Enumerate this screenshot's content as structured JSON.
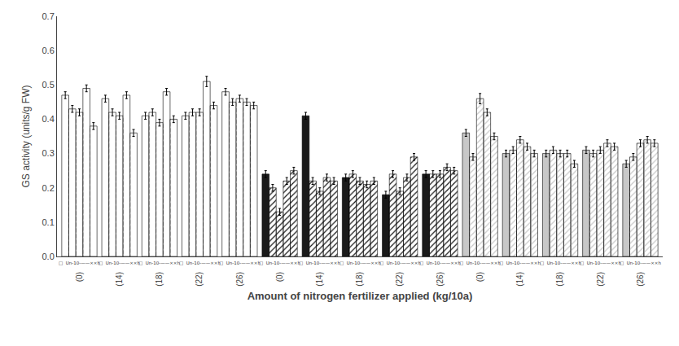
{
  "chart_data": {
    "type": "bar",
    "xlabel": "Amount of nitrogen fertilizer applied (kg/10a)",
    "ylabel": "GS activity (units/g FW)",
    "categories": [
      "(0)",
      "(14)",
      "(18)",
      "(22)",
      "(26)",
      "(0)",
      "(14)",
      "(18)",
      "(22)",
      "(26)",
      "(0)",
      "(14)",
      "(18)",
      "(22)",
      "(26)"
    ],
    "series": [
      {
        "values": [
          0.47,
          0.46,
          0.41,
          0.41,
          0.48,
          0.24,
          0.41,
          0.23,
          0.18,
          0.24,
          0.36,
          0.3,
          0.3,
          0.31,
          0.27
        ],
        "errors": [
          0.01,
          0.01,
          0.01,
          0.01,
          0.01,
          0.01,
          0.01,
          0.01,
          0.01,
          0.01,
          0.01,
          0.01,
          0.01,
          0.01,
          0.01
        ],
        "colors": [
          "white",
          "white",
          "white",
          "white",
          "white",
          "#1a1a1a",
          "#1a1a1a",
          "#1a1a1a",
          "#1a1a1a",
          "#1a1a1a",
          "#c8c8c8",
          "#c8c8c8",
          "#c8c8c8",
          "#c8c8c8",
          "#c8c8c8"
        ]
      },
      {
        "values": [
          0.43,
          0.42,
          0.42,
          0.42,
          0.45,
          0.2,
          0.22,
          0.24,
          0.24,
          0.24,
          0.29,
          0.31,
          0.31,
          0.3,
          0.29
        ],
        "errors": [
          0.01,
          0.01,
          0.01,
          0.01,
          0.01,
          0.01,
          0.01,
          0.01,
          0.01,
          0.01,
          0.01,
          0.01,
          0.01,
          0.01,
          0.01
        ],
        "colors": [
          "white",
          "white",
          "white",
          "white",
          "white",
          "#1a1a1a",
          "#1a1a1a",
          "#1a1a1a",
          "#1a1a1a",
          "#1a1a1a",
          "#c8c8c8",
          "#c8c8c8",
          "#c8c8c8",
          "#c8c8c8",
          "#c8c8c8"
        ]
      },
      {
        "values": [
          0.42,
          0.41,
          0.39,
          0.42,
          0.46,
          0.13,
          0.19,
          0.22,
          0.19,
          0.24,
          0.46,
          0.34,
          0.3,
          0.31,
          0.33
        ],
        "errors": [
          0.01,
          0.01,
          0.01,
          0.01,
          0.01,
          0.01,
          0.01,
          0.01,
          0.01,
          0.01,
          0.015,
          0.01,
          0.01,
          0.01,
          0.01
        ],
        "colors": [
          "white",
          "white",
          "white",
          "white",
          "white",
          "#1a1a1a",
          "#1a1a1a",
          "#1a1a1a",
          "#1a1a1a",
          "#1a1a1a",
          "#c8c8c8",
          "#c8c8c8",
          "#c8c8c8",
          "#c8c8c8",
          "#c8c8c8"
        ]
      },
      {
        "values": [
          0.49,
          0.47,
          0.48,
          0.51,
          0.45,
          0.22,
          0.23,
          0.21,
          0.23,
          0.26,
          0.42,
          0.32,
          0.3,
          0.33,
          0.34
        ],
        "errors": [
          0.01,
          0.01,
          0.01,
          0.015,
          0.01,
          0.01,
          0.01,
          0.01,
          0.01,
          0.01,
          0.01,
          0.01,
          0.01,
          0.01,
          0.01
        ],
        "colors": [
          "white",
          "white",
          "white",
          "white",
          "white",
          "#1a1a1a",
          "#1a1a1a",
          "#1a1a1a",
          "#1a1a1a",
          "#1a1a1a",
          "#c8c8c8",
          "#c8c8c8",
          "#c8c8c8",
          "#c8c8c8",
          "#c8c8c8"
        ]
      },
      {
        "values": [
          0.38,
          0.36,
          0.4,
          0.44,
          0.44,
          0.25,
          0.22,
          0.22,
          0.29,
          0.25,
          0.35,
          0.3,
          0.27,
          0.32,
          0.33
        ],
        "errors": [
          0.01,
          0.01,
          0.01,
          0.01,
          0.01,
          0.01,
          0.01,
          0.01,
          0.01,
          0.01,
          0.01,
          0.01,
          0.01,
          0.01,
          0.01
        ],
        "colors": [
          "white",
          "white",
          "white",
          "white",
          "white",
          "#1a1a1a",
          "#1a1a1a",
          "#1a1a1a",
          "#1a1a1a",
          "#1a1a1a",
          "#c8c8c8",
          "#c8c8c8",
          "#c8c8c8",
          "#c8c8c8",
          "#c8c8c8"
        ]
      }
    ],
    "ylim": [
      0,
      0.7
    ],
    "yticks": [
      {
        "value": 0,
        "label": "0.0"
      },
      0.1,
      0.2,
      0.3,
      0.4,
      0.5,
      0.6,
      0.7
    ],
    "grid": false,
    "annotations": [
      {
        "x": 0,
        "text": "□  Un-10-——××h"
      },
      {
        "x": 1,
        "text": "□  Un-10-——××h"
      },
      {
        "x": 2,
        "text": "□  Un-10-——××h"
      },
      {
        "x": 3,
        "text": "□  Un-10-——××h"
      },
      {
        "x": 4,
        "text": "□  Un-10-——××h"
      },
      {
        "x": 5,
        "text": "□  Un-10-——××h"
      },
      {
        "x": 6,
        "text": "□  Un-10-——××h"
      },
      {
        "x": 7,
        "text": "□  Un-10-——××h"
      },
      {
        "x": 8,
        "text": "□  Un-10-——××h"
      },
      {
        "x": 9,
        "text": "□  Un-10-——××h"
      },
      {
        "x": 10,
        "text": "□  Un-10-——××h"
      },
      {
        "x": 11,
        "text": "□  Un-10-——××h"
      },
      {
        "x": 12,
        "text": "□  Un-10-——××h"
      },
      {
        "x": 13,
        "text": "□  Un-10-——××h"
      },
      {
        "x": 14,
        "text": "□  Un-10-——××h"
      }
    ]
  }
}
